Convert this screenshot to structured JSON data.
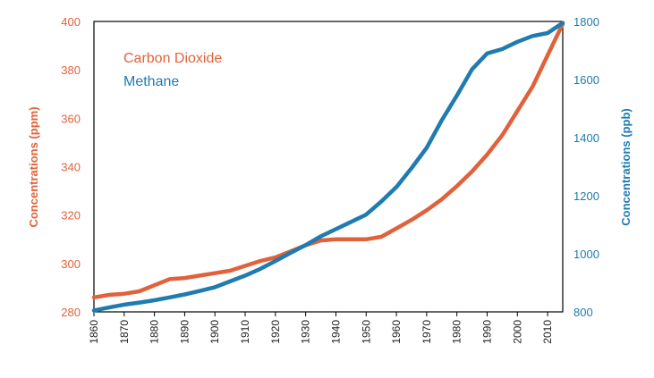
{
  "chart_data": {
    "type": "line",
    "xlabel": "",
    "xlim": [
      1860,
      2015
    ],
    "x_ticks": [
      "1860",
      "1870",
      "1880",
      "1890",
      "1900",
      "1910",
      "1920",
      "1930",
      "1940",
      "1950",
      "1960",
      "1970",
      "1980",
      "1990",
      "2000",
      "2010"
    ],
    "y_left": {
      "label": "Concentrations (ppm)",
      "lim": [
        280,
        400
      ],
      "ticks": [
        "280",
        "300",
        "320",
        "340",
        "360",
        "380",
        "400"
      ],
      "color": "#e0623a"
    },
    "y_right": {
      "label": "Concentrations (ppb)",
      "lim": [
        800,
        1800
      ],
      "ticks": [
        "800",
        "1000",
        "1200",
        "1400",
        "1600",
        "1800"
      ],
      "color": "#1f7bb0"
    },
    "legend_position": "top-left",
    "grid": false,
    "series": [
      {
        "name": "Carbon Dioxide",
        "axis": "left",
        "color": "#e0623a",
        "x": [
          1860,
          1865,
          1870,
          1875,
          1880,
          1885,
          1890,
          1895,
          1900,
          1905,
          1910,
          1915,
          1920,
          1925,
          1930,
          1935,
          1940,
          1945,
          1950,
          1955,
          1960,
          1965,
          1970,
          1975,
          1980,
          1985,
          1990,
          1995,
          2000,
          2005,
          2010,
          2015
        ],
        "values": [
          286,
          287,
          287.5,
          288.5,
          291,
          293.5,
          294,
          295,
          296,
          297,
          299,
          301,
          302.5,
          305,
          307.5,
          309.5,
          310,
          310,
          310,
          311,
          314.5,
          318,
          322,
          326.5,
          332,
          338,
          345,
          353,
          363,
          373,
          386,
          399
        ]
      },
      {
        "name": "Methane",
        "axis": "right",
        "color": "#1f7bb0",
        "x": [
          1860,
          1865,
          1870,
          1875,
          1880,
          1885,
          1890,
          1895,
          1900,
          1905,
          1910,
          1915,
          1920,
          1925,
          1930,
          1935,
          1940,
          1945,
          1950,
          1955,
          1960,
          1965,
          1970,
          1975,
          1980,
          1985,
          1990,
          1995,
          2000,
          2005,
          2010,
          2015
        ],
        "values": [
          805,
          815,
          825,
          832,
          840,
          850,
          860,
          872,
          885,
          905,
          925,
          948,
          975,
          1003,
          1030,
          1060,
          1085,
          1110,
          1135,
          1180,
          1230,
          1295,
          1365,
          1460,
          1545,
          1635,
          1690,
          1705,
          1730,
          1750,
          1760,
          1795
        ]
      }
    ]
  }
}
